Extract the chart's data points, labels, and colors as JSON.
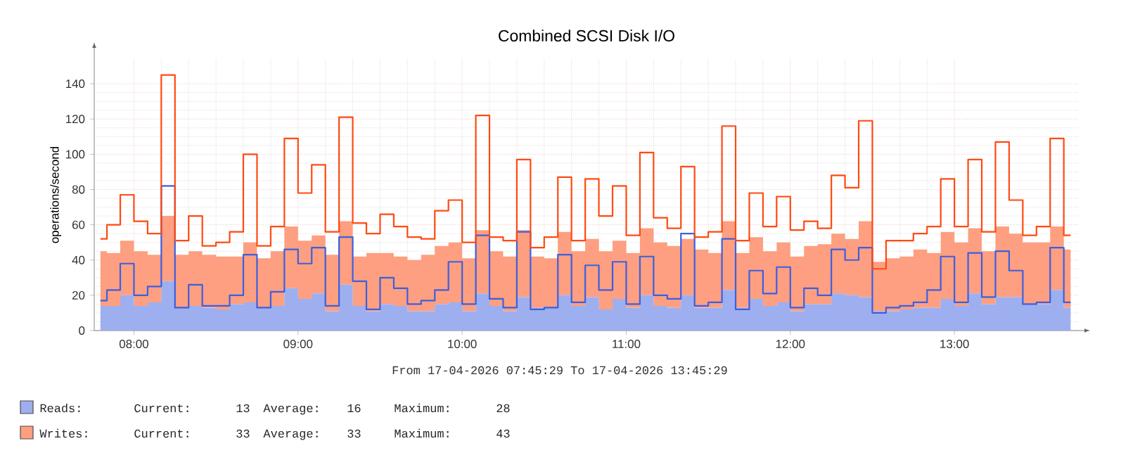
{
  "chart_data": {
    "type": "area",
    "title": "Combined SCSI Disk I/O",
    "ylabel": "operations/second",
    "stacked": true,
    "grid": true,
    "legend": "bottom",
    "x": [
      7.7958,
      7.875,
      7.9583,
      8.0417,
      8.125,
      8.2083,
      8.2917,
      8.375,
      8.4583,
      8.5417,
      8.625,
      8.7083,
      8.7917,
      8.875,
      8.9583,
      9.0417,
      9.125,
      9.2083,
      9.2917,
      9.375,
      9.4583,
      9.5417,
      9.625,
      9.7083,
      9.7917,
      9.875,
      9.9583,
      10.0417,
      10.125,
      10.2083,
      10.2917,
      10.375,
      10.4583,
      10.5417,
      10.625,
      10.7083,
      10.7917,
      10.875,
      10.9583,
      11.0417,
      11.125,
      11.2083,
      11.2917,
      11.375,
      11.4583,
      11.5417,
      11.625,
      11.7083,
      11.7917,
      11.875,
      11.9583,
      12.0417,
      12.125,
      12.2083,
      12.2917,
      12.375,
      12.4583,
      12.5417,
      12.625,
      12.7083,
      12.7917,
      12.875,
      12.9583,
      13.0417,
      13.125,
      13.2083,
      13.2917,
      13.375,
      13.4583,
      13.5417,
      13.625,
      13.7083
    ],
    "xlim": [
      7.7581,
      13.7581
    ],
    "xticks": [
      {
        "value": 8,
        "label": "08:00"
      },
      {
        "value": 9,
        "label": "09:00"
      },
      {
        "value": 10,
        "label": "10:00"
      },
      {
        "value": 11,
        "label": "11:00"
      },
      {
        "value": 12,
        "label": "12:00"
      },
      {
        "value": 13,
        "label": "13:00"
      }
    ],
    "ylim": [
      0,
      154
    ],
    "yticks": [
      0,
      20,
      40,
      60,
      80,
      100,
      120,
      140
    ],
    "series": [
      {
        "name": "Reads:",
        "color": "#9eaff0",
        "values": [
          14,
          14,
          20,
          14,
          16,
          28,
          13,
          14,
          13,
          12,
          15,
          16,
          13,
          14,
          24,
          18,
          21,
          11,
          26,
          14,
          11,
          15,
          14,
          11,
          11,
          15,
          16,
          11,
          21,
          14,
          11,
          19,
          13,
          13,
          20,
          14,
          19,
          12,
          18,
          13,
          20,
          14,
          13,
          20,
          13,
          13,
          23,
          13,
          18,
          14,
          16,
          11,
          15,
          15,
          21,
          20,
          19,
          11,
          11,
          12,
          13,
          13,
          18,
          14,
          21,
          15,
          19,
          19,
          15,
          15,
          23,
          13
        ]
      },
      {
        "name": "Writes:",
        "color": "#fd9f80",
        "values": [
          31,
          30,
          31,
          31,
          27,
          37,
          30,
          31,
          30,
          30,
          27,
          34,
          28,
          31,
          35,
          33,
          33,
          32,
          36,
          28,
          33,
          29,
          28,
          29,
          32,
          33,
          34,
          30,
          36,
          31,
          31,
          38,
          29,
          28,
          36,
          31,
          33,
          33,
          33,
          31,
          38,
          36,
          35,
          32,
          33,
          31,
          39,
          31,
          35,
          31,
          34,
          31,
          33,
          34,
          34,
          32,
          43,
          28,
          30,
          30,
          33,
          31,
          38,
          36,
          37,
          30,
          40,
          36,
          35,
          35,
          36,
          33
        ]
      },
      {
        "type": "step",
        "color": "#3d5fe0",
        "values": [
          17,
          23,
          38,
          20,
          25,
          82,
          13,
          26,
          14,
          14,
          20,
          43,
          13,
          22,
          46,
          38,
          47,
          14,
          53,
          28,
          12,
          30,
          24,
          15,
          17,
          23,
          39,
          15,
          54,
          18,
          13,
          56,
          12,
          13,
          43,
          16,
          37,
          23,
          39,
          15,
          42,
          20,
          18,
          55,
          14,
          16,
          52,
          12,
          34,
          21,
          36,
          13,
          24,
          20,
          46,
          40,
          47,
          10,
          13,
          14,
          16,
          23,
          42,
          16,
          44,
          19,
          45,
          34,
          15,
          16,
          47,
          16
        ]
      },
      {
        "type": "step",
        "color": "#ff4a12",
        "values": [
          52,
          60,
          77,
          62,
          55,
          145,
          51,
          65,
          48,
          50,
          56,
          100,
          48,
          59,
          109,
          78,
          94,
          56,
          121,
          61,
          55,
          66,
          59,
          53,
          52,
          68,
          74,
          50,
          122,
          53,
          51,
          97,
          47,
          53,
          87,
          51,
          86,
          65,
          82,
          54,
          101,
          64,
          58,
          93,
          53,
          56,
          116,
          51,
          78,
          59,
          76,
          57,
          62,
          58,
          88,
          81,
          119,
          35,
          51,
          51,
          55,
          59,
          86,
          59,
          97,
          56,
          107,
          74,
          54,
          59,
          109,
          54
        ]
      }
    ],
    "annotations": [
      "From 17-04-2026 07:45:29 To 17-04-2026 13:45:29",
      "Current:",
      "13",
      "Average:",
      "16",
      "Maximum:",
      "28",
      "Current:",
      "33",
      "Average:",
      "33",
      "Maximum:",
      "43"
    ]
  }
}
